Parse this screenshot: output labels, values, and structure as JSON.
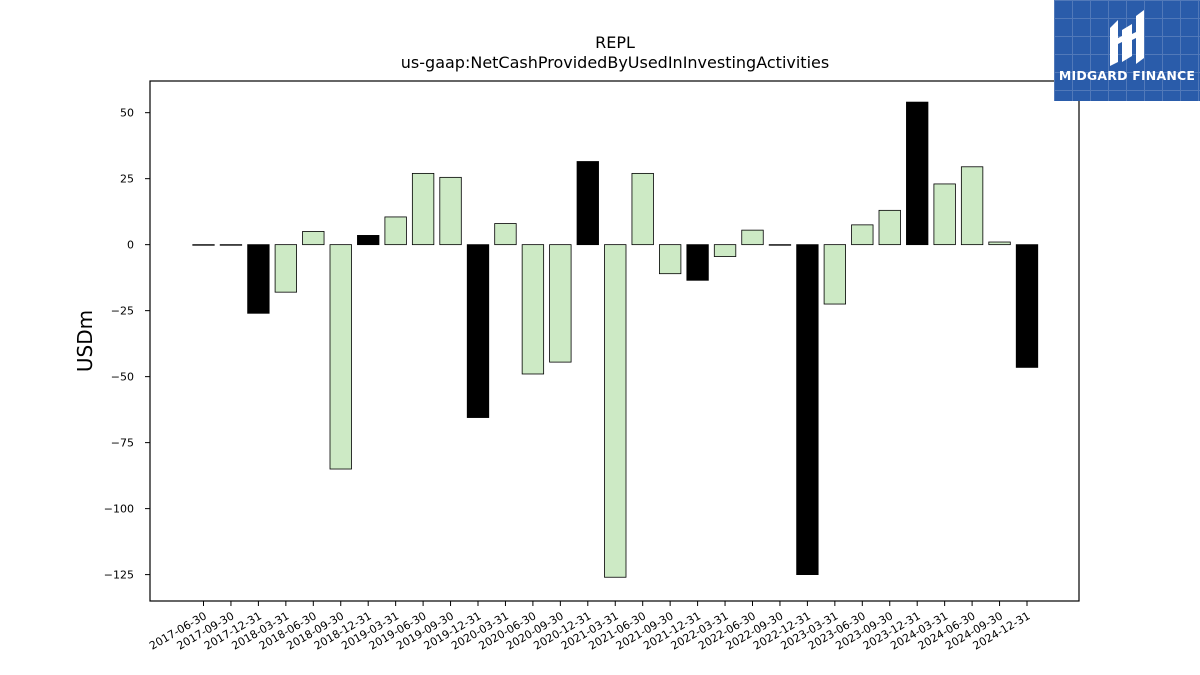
{
  "brand": {
    "name": "MIDGARD FINANCE",
    "bg_color": "#2a5caa"
  },
  "colors": {
    "positive_bar": "#cdeac5",
    "highlight_bar": "#000000",
    "bar_edge": "#000000"
  },
  "chart_data": {
    "type": "bar",
    "title": "REPL",
    "subtitle": "us-gaap:NetCashProvidedByUsedInInvestingActivities",
    "ylabel": "USDm",
    "xlabel": "",
    "ylim": [
      -135,
      62
    ],
    "yticks": [
      50,
      25,
      0,
      -25,
      -50,
      -75,
      -100,
      -125
    ],
    "grid": false,
    "legend": "none",
    "categories": [
      "2017-06-30",
      "2017-09-30",
      "2017-12-31",
      "2018-03-31",
      "2018-06-30",
      "2018-09-30",
      "2018-12-31",
      "2019-03-31",
      "2019-06-30",
      "2019-09-30",
      "2019-12-31",
      "2020-03-31",
      "2020-06-30",
      "2020-09-30",
      "2020-12-31",
      "2021-03-31",
      "2021-06-30",
      "2021-09-30",
      "2021-12-31",
      "2022-03-31",
      "2022-06-30",
      "2022-09-30",
      "2022-12-31",
      "2023-03-31",
      "2023-06-30",
      "2023-09-30",
      "2023-12-31",
      "2024-03-31",
      "2024-06-30",
      "2024-09-30",
      "2024-12-31"
    ],
    "values": [
      0,
      0,
      -26,
      -18,
      5,
      -85,
      3.5,
      10.5,
      27,
      25.5,
      -65.5,
      8,
      -49,
      -44.5,
      31.5,
      -126,
      27,
      -11,
      -13.5,
      -4.5,
      5.5,
      0,
      -125,
      -22.5,
      7.5,
      13,
      54,
      23,
      29.5,
      1,
      -46.5
    ],
    "highlighted": [
      false,
      false,
      true,
      false,
      false,
      false,
      true,
      false,
      false,
      false,
      true,
      false,
      false,
      false,
      true,
      false,
      false,
      false,
      true,
      false,
      false,
      false,
      true,
      false,
      false,
      false,
      true,
      false,
      false,
      false,
      true
    ]
  }
}
